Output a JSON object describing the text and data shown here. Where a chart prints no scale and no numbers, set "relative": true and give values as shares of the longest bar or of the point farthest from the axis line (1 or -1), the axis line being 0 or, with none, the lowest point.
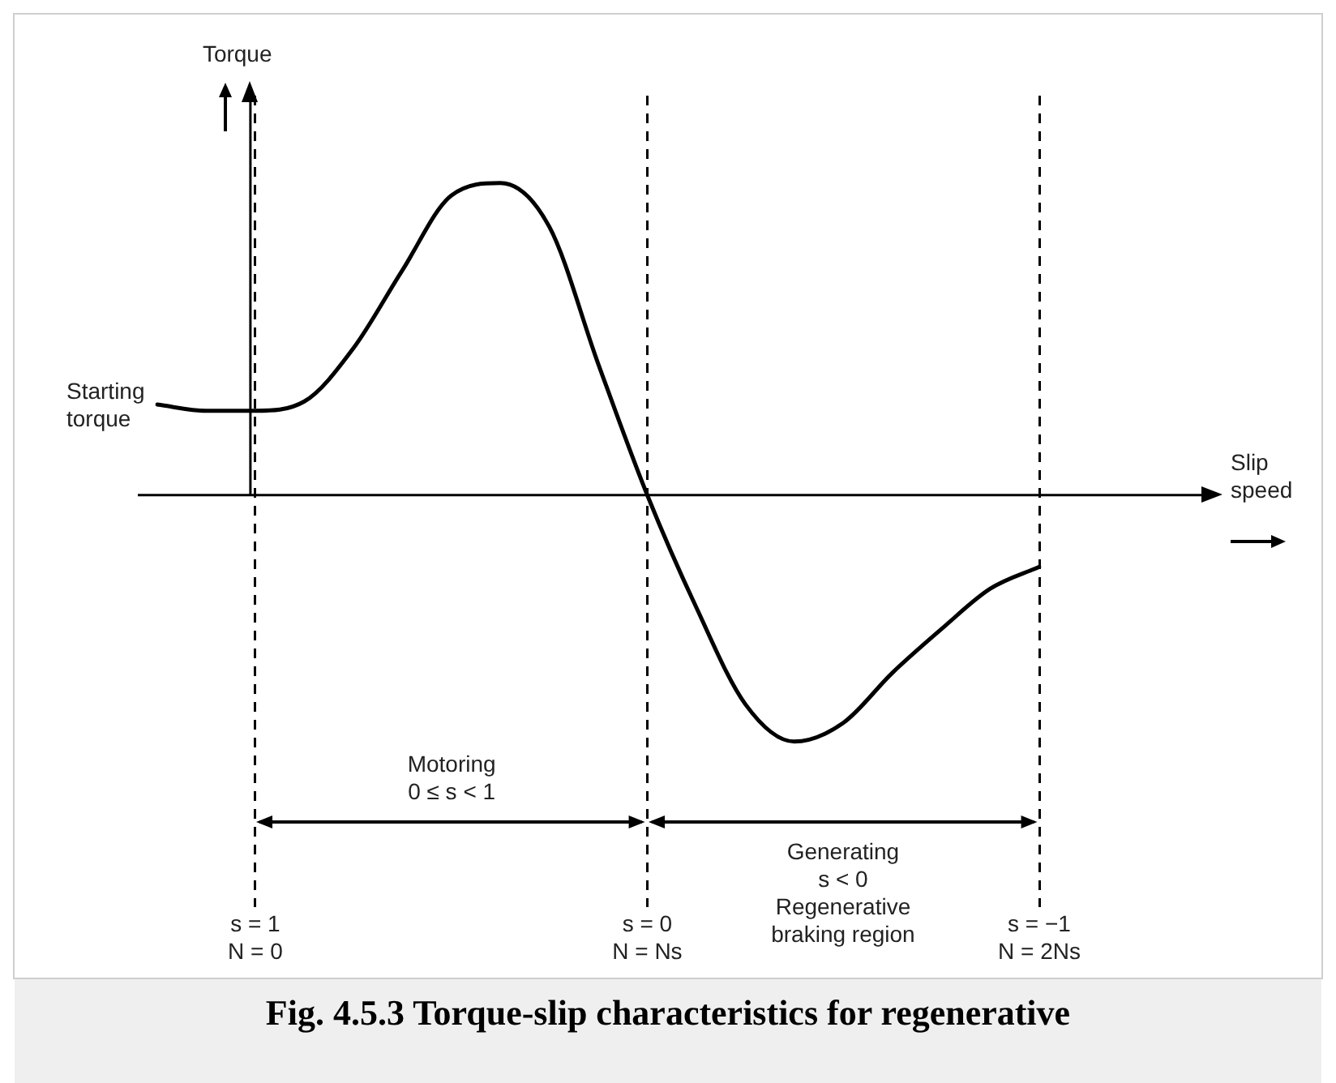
{
  "chart_data": {
    "type": "line",
    "title": "Fig. 4.5.3 Torque-slip characteristics for regenerative",
    "relative": true,
    "marker": "none",
    "line_style": "solid",
    "grid": "x",
    "legend": false,
    "categories": [
      null,
      null,
      "s = 1\nN = 0",
      null,
      null,
      null,
      null,
      null,
      null,
      null,
      "s = 0\nN = Ns",
      null,
      null,
      null,
      null,
      null,
      null,
      null,
      "s = −1\nN = 2Ns"
    ],
    "series": [
      {
        "color": "#000000",
        "values": [
          0.29,
          0.27,
          0.27,
          0.3,
          0.47,
          0.72,
          0.96,
          1,
          0.86,
          0.42,
          0,
          -0.36,
          -0.67,
          -0.79,
          -0.73,
          -0.57,
          -0.43,
          -0.3,
          -0.23
        ]
      }
    ],
    "annotations": [
      "Torque",
      "Starting\ntorque",
      "Slip\nspeed",
      "Motoring\n0 ≤ s < 1",
      "Generating\ns < 0\nRegenerative\nbraking region"
    ]
  }
}
